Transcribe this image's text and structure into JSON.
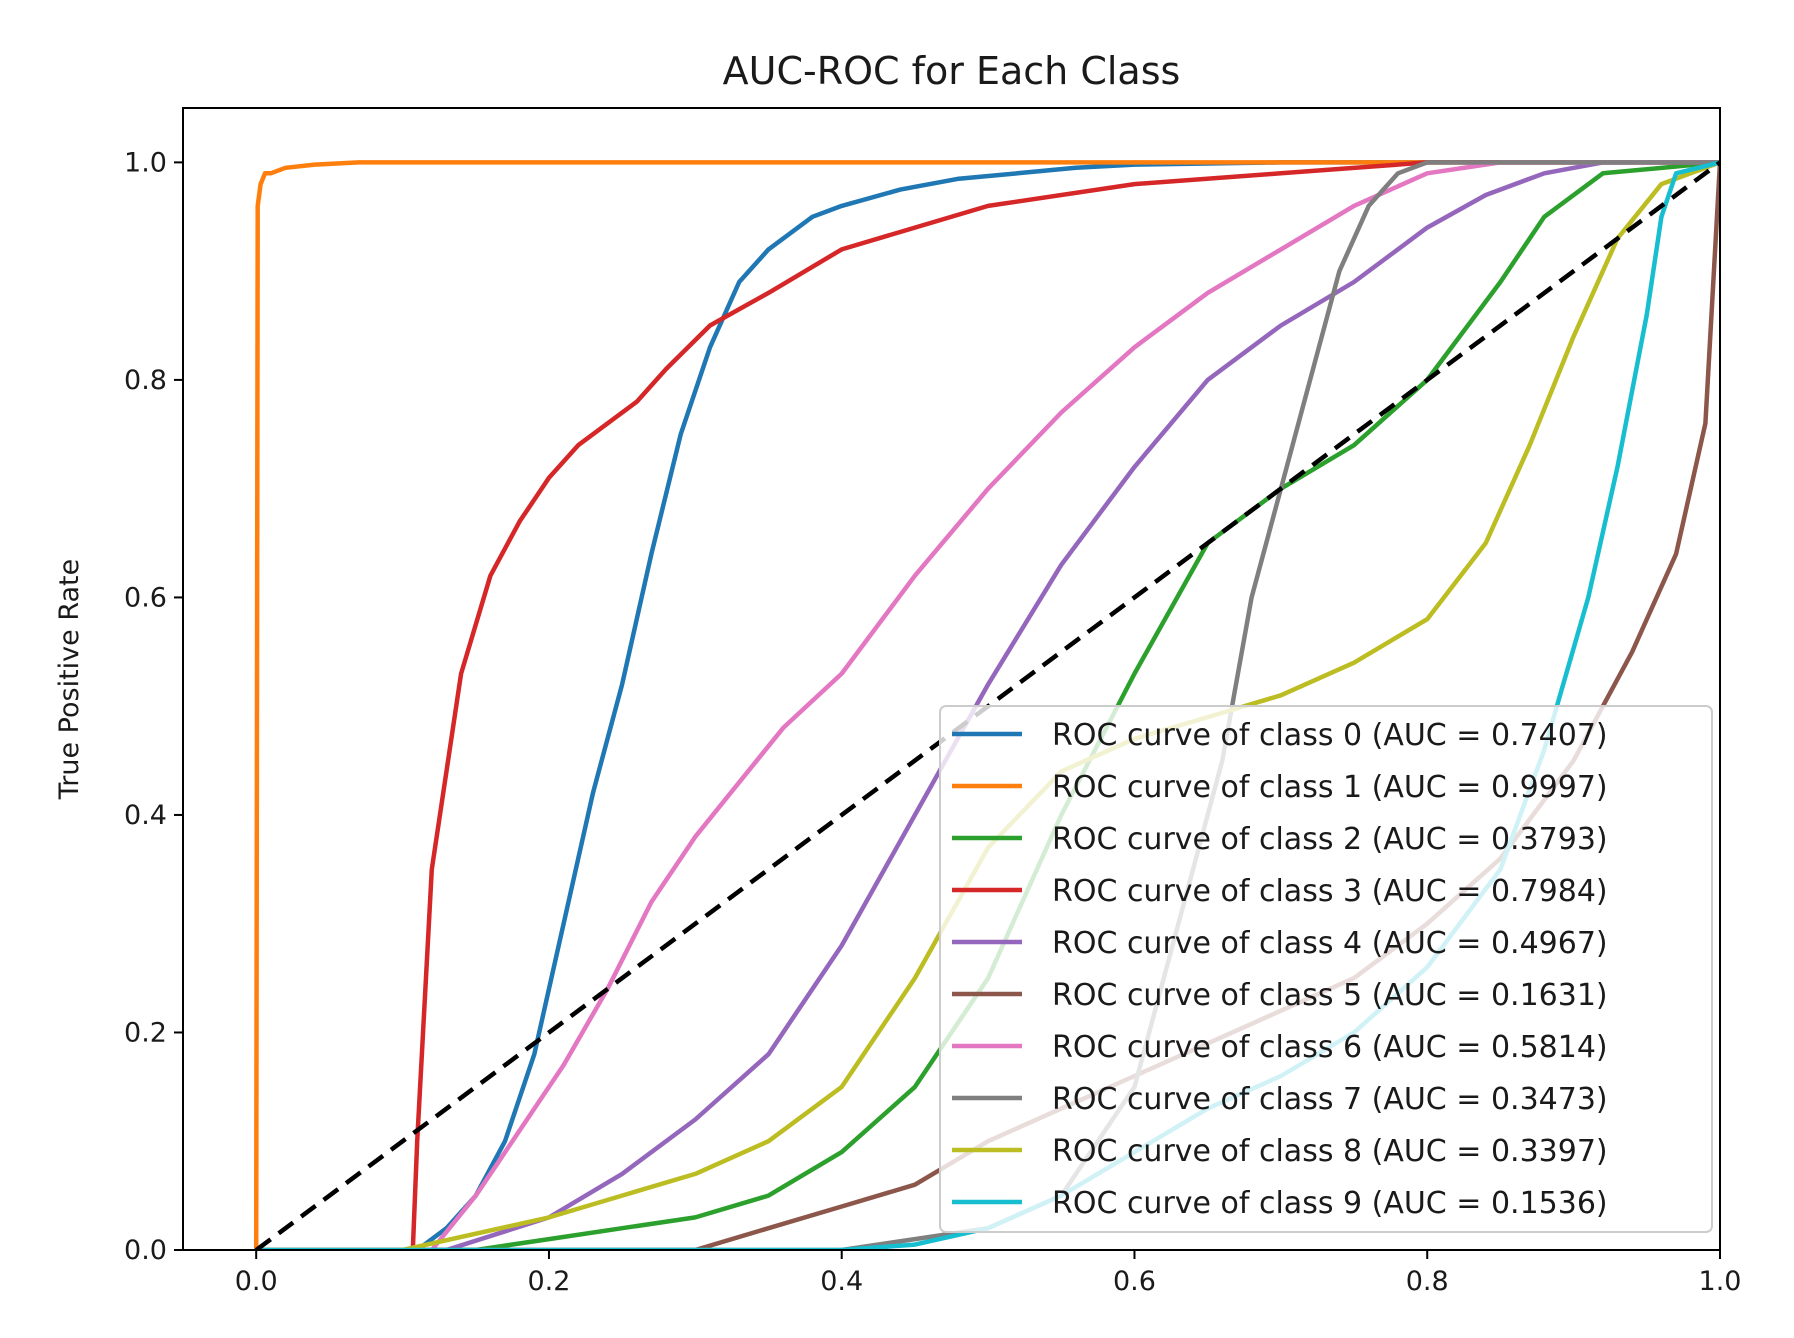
{
  "chart_data": {
    "type": "line",
    "title": "AUC-ROC for Each Class",
    "xlabel": "",
    "ylabel": "True Positive Rate",
    "xlim": [
      -0.05,
      1.0
    ],
    "ylim": [
      0.0,
      1.05
    ],
    "xticks": [
      "0.0",
      "0.2",
      "0.4",
      "0.6",
      "0.8",
      "1.0"
    ],
    "xtick_values": [
      0.0,
      0.2,
      0.4,
      0.6,
      0.8,
      1.0
    ],
    "yticks": [
      "0.0",
      "0.2",
      "0.4",
      "0.6",
      "0.8",
      "1.0"
    ],
    "ytick_values": [
      0.0,
      0.2,
      0.4,
      0.6,
      0.8,
      1.0
    ],
    "grid": false,
    "legend_position": "lower-right",
    "diagonal": {
      "x": [
        0,
        1
      ],
      "y": [
        0,
        1
      ],
      "color": "#000000",
      "style": "dashed"
    },
    "series": [
      {
        "name": "ROC curve of class 0 (AUC = 0.7407)",
        "color": "#1f77b4",
        "x": [
          0.0,
          0.11,
          0.13,
          0.15,
          0.17,
          0.19,
          0.21,
          0.23,
          0.25,
          0.27,
          0.29,
          0.31,
          0.33,
          0.35,
          0.38,
          0.4,
          0.44,
          0.48,
          0.52,
          0.56,
          0.6,
          0.7,
          0.8,
          1.0
        ],
        "y": [
          0.0,
          0.0,
          0.02,
          0.05,
          0.1,
          0.18,
          0.3,
          0.42,
          0.52,
          0.64,
          0.75,
          0.83,
          0.89,
          0.92,
          0.95,
          0.96,
          0.975,
          0.985,
          0.99,
          0.995,
          0.998,
          1.0,
          1.0,
          1.0
        ]
      },
      {
        "name": "ROC curve of class 1 (AUC = 0.9997)",
        "color": "#ff7f0e",
        "x": [
          0.0,
          0.001,
          0.003,
          0.006,
          0.01,
          0.02,
          0.04,
          0.07,
          0.1,
          1.0
        ],
        "y": [
          0.0,
          0.96,
          0.98,
          0.99,
          0.99,
          0.995,
          0.998,
          1.0,
          1.0,
          1.0
        ]
      },
      {
        "name": "ROC curve of class 2 (AUC = 0.3793)",
        "color": "#2ca02c",
        "x": [
          0.0,
          0.15,
          0.2,
          0.25,
          0.3,
          0.35,
          0.4,
          0.45,
          0.5,
          0.55,
          0.6,
          0.65,
          0.7,
          0.75,
          0.8,
          0.85,
          0.88,
          0.92,
          1.0
        ],
        "y": [
          0.0,
          0.0,
          0.01,
          0.02,
          0.03,
          0.05,
          0.09,
          0.15,
          0.25,
          0.4,
          0.53,
          0.65,
          0.7,
          0.74,
          0.8,
          0.89,
          0.95,
          0.99,
          1.0
        ]
      },
      {
        "name": "ROC curve of class 3 (AUC = 0.7984)",
        "color": "#d62728",
        "x": [
          0.0,
          0.107,
          0.11,
          0.12,
          0.14,
          0.16,
          0.18,
          0.2,
          0.22,
          0.24,
          0.26,
          0.28,
          0.31,
          0.35,
          0.4,
          0.45,
          0.5,
          0.6,
          0.7,
          0.8,
          1.0
        ],
        "y": [
          0.0,
          0.0,
          0.1,
          0.35,
          0.53,
          0.62,
          0.67,
          0.71,
          0.74,
          0.76,
          0.78,
          0.81,
          0.85,
          0.88,
          0.92,
          0.94,
          0.96,
          0.98,
          0.99,
          1.0,
          1.0
        ]
      },
      {
        "name": "ROC curve of class 4 (AUC = 0.4967)",
        "color": "#9467bd",
        "x": [
          0.0,
          0.13,
          0.2,
          0.25,
          0.3,
          0.35,
          0.4,
          0.45,
          0.5,
          0.55,
          0.6,
          0.65,
          0.7,
          0.75,
          0.8,
          0.84,
          0.88,
          0.92,
          1.0
        ],
        "y": [
          0.0,
          0.0,
          0.03,
          0.07,
          0.12,
          0.18,
          0.28,
          0.4,
          0.52,
          0.63,
          0.72,
          0.8,
          0.85,
          0.89,
          0.94,
          0.97,
          0.99,
          1.0,
          1.0
        ]
      },
      {
        "name": "ROC curve of class 5 (AUC = 0.1631)",
        "color": "#8c564b",
        "x": [
          0.0,
          0.3,
          0.35,
          0.4,
          0.45,
          0.5,
          0.55,
          0.6,
          0.65,
          0.7,
          0.75,
          0.8,
          0.85,
          0.9,
          0.94,
          0.97,
          0.99,
          1.0
        ],
        "y": [
          0.0,
          0.0,
          0.02,
          0.04,
          0.06,
          0.1,
          0.13,
          0.16,
          0.19,
          0.22,
          0.25,
          0.3,
          0.36,
          0.45,
          0.55,
          0.64,
          0.76,
          1.0
        ]
      },
      {
        "name": "ROC curve of class 6 (AUC = 0.5814)",
        "color": "#e377c2",
        "x": [
          0.0,
          0.12,
          0.15,
          0.18,
          0.21,
          0.24,
          0.27,
          0.3,
          0.33,
          0.36,
          0.4,
          0.45,
          0.5,
          0.55,
          0.6,
          0.65,
          0.7,
          0.75,
          0.8,
          0.85,
          0.9,
          1.0
        ],
        "y": [
          0.0,
          0.0,
          0.05,
          0.11,
          0.17,
          0.24,
          0.32,
          0.38,
          0.43,
          0.48,
          0.53,
          0.62,
          0.7,
          0.77,
          0.83,
          0.88,
          0.92,
          0.96,
          0.99,
          1.0,
          1.0,
          1.0
        ]
      },
      {
        "name": "ROC curve of class 7 (AUC = 0.3473)",
        "color": "#7f7f7f",
        "x": [
          0.0,
          0.4,
          0.45,
          0.5,
          0.55,
          0.6,
          0.63,
          0.66,
          0.68,
          0.7,
          0.72,
          0.74,
          0.76,
          0.78,
          0.8,
          0.85,
          1.0
        ],
        "y": [
          0.0,
          0.0,
          0.01,
          0.02,
          0.05,
          0.15,
          0.3,
          0.45,
          0.6,
          0.7,
          0.8,
          0.9,
          0.96,
          0.99,
          1.0,
          1.0,
          1.0
        ]
      },
      {
        "name": "ROC curve of class 8 (AUC = 0.3397)",
        "color": "#bcbd22",
        "x": [
          0.0,
          0.1,
          0.2,
          0.25,
          0.3,
          0.35,
          0.4,
          0.45,
          0.5,
          0.55,
          0.6,
          0.65,
          0.7,
          0.75,
          0.8,
          0.84,
          0.87,
          0.9,
          0.93,
          0.96,
          1.0
        ],
        "y": [
          0.0,
          0.0,
          0.03,
          0.05,
          0.07,
          0.1,
          0.15,
          0.25,
          0.37,
          0.44,
          0.47,
          0.49,
          0.51,
          0.54,
          0.58,
          0.65,
          0.74,
          0.84,
          0.93,
          0.98,
          1.0
        ]
      },
      {
        "name": "ROC curve of class 9 (AUC = 0.1536)",
        "color": "#17becf",
        "x": [
          0.0,
          0.4,
          0.45,
          0.5,
          0.55,
          0.6,
          0.65,
          0.7,
          0.75,
          0.8,
          0.85,
          0.88,
          0.91,
          0.93,
          0.95,
          0.96,
          0.97,
          1.0
        ],
        "y": [
          0.0,
          0.0,
          0.005,
          0.02,
          0.05,
          0.09,
          0.13,
          0.16,
          0.2,
          0.26,
          0.35,
          0.46,
          0.6,
          0.72,
          0.86,
          0.95,
          0.99,
          1.0
        ]
      }
    ]
  }
}
